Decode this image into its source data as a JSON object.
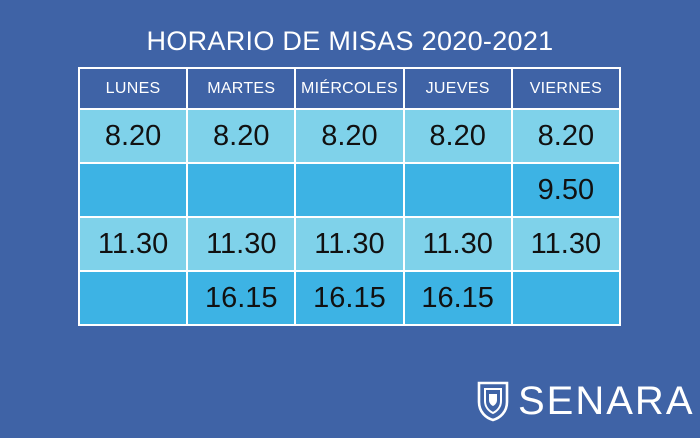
{
  "title": "HORARIO DE MISAS 2020-2021",
  "days": [
    "LUNES",
    "MARTES",
    "MIÉRCOLES",
    "JUEVES",
    "VIERNES"
  ],
  "rows": [
    [
      "8.20",
      "8.20",
      "8.20",
      "8.20",
      "8.20"
    ],
    [
      "",
      "",
      "",
      "",
      "9.50"
    ],
    [
      "11.30",
      "11.30",
      "11.30",
      "11.30",
      "11.30"
    ],
    [
      "",
      "16.15",
      "16.15",
      "16.15",
      ""
    ]
  ],
  "logo": {
    "text": "SENARA",
    "icon": "shield-crest-icon"
  },
  "colors": {
    "background": "#3f63a6",
    "row_light": "#7fd2ea",
    "row_dark": "#3db3e4",
    "text_dark": "#111111",
    "text_light": "#ffffff"
  }
}
